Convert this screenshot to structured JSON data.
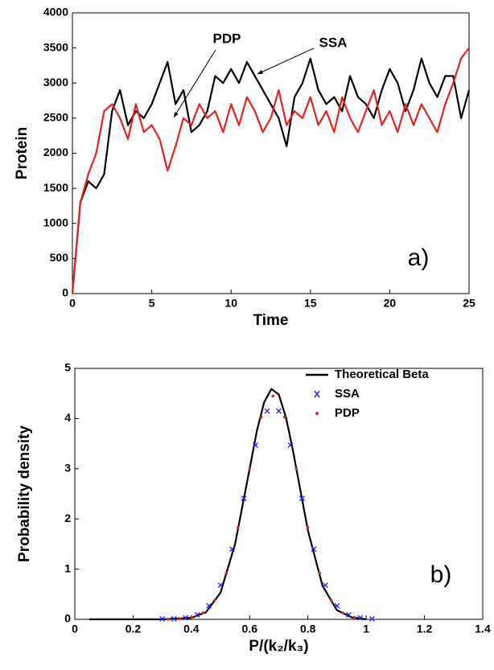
{
  "chart_data": [
    {
      "type": "line",
      "x": [
        0,
        0.5,
        1,
        1.5,
        2,
        2.5,
        3,
        3.5,
        4,
        4.5,
        5,
        5.5,
        6,
        6.5,
        7,
        7.5,
        8,
        8.5,
        9,
        9.5,
        10,
        10.5,
        11,
        11.5,
        12,
        12.5,
        13,
        13.5,
        14,
        14.5,
        15,
        15.5,
        16,
        16.5,
        17,
        17.5,
        18,
        18.5,
        19,
        19.5,
        20,
        20.5,
        21,
        21.5,
        22,
        22.5,
        23,
        23.5,
        24,
        24.5,
        25
      ],
      "series": [
        {
          "name": "SSA",
          "color": "#000000",
          "values": [
            0,
            1300,
            1600,
            1500,
            1700,
            2600,
            2900,
            2400,
            2600,
            2500,
            2700,
            3000,
            3300,
            2700,
            2900,
            2300,
            2400,
            2600,
            3100,
            3000,
            3200,
            3000,
            3300,
            3100,
            2900,
            2700,
            2500,
            2100,
            2800,
            3000,
            3350,
            2900,
            2700,
            2800,
            2600,
            3100,
            2800,
            2700,
            2500,
            2900,
            3200,
            3000,
            2600,
            2900,
            3350,
            3000,
            2800,
            3100,
            3100,
            2500,
            2900
          ]
        },
        {
          "name": "PDP",
          "color": "#e8211f",
          "values": [
            0,
            1300,
            1700,
            2000,
            2600,
            2700,
            2500,
            2200,
            2700,
            2300,
            2400,
            2200,
            1750,
            2100,
            2500,
            2400,
            2700,
            2500,
            2600,
            2300,
            2700,
            2400,
            2800,
            2600,
            2300,
            2500,
            2900,
            2400,
            2600,
            2500,
            2800,
            2400,
            2600,
            2300,
            2800,
            2500,
            2300,
            2600,
            2900,
            2400,
            2600,
            2300,
            2700,
            2400,
            2700,
            2500,
            2300,
            2700,
            3000,
            3350,
            3500
          ]
        }
      ],
      "xlim": [
        0,
        25
      ],
      "xticks": [
        0,
        5,
        10,
        15,
        20,
        25
      ],
      "ylim": [
        0,
        4000
      ],
      "yticks": [
        0,
        500,
        1000,
        1500,
        2000,
        2500,
        3000,
        3500,
        4000
      ],
      "xlabel": "Time",
      "ylabel": "Protein",
      "annotation": "a)",
      "legend": false
    },
    {
      "type": "line",
      "series": [
        {
          "name": "Theoretical Beta",
          "color": "#000000",
          "style": "line",
          "x": [
            0.05,
            0.3,
            0.4,
            0.45,
            0.5,
            0.55,
            0.6,
            0.625,
            0.65,
            0.675,
            0.7,
            0.725,
            0.75,
            0.8,
            0.85,
            0.9,
            0.95,
            1.0
          ],
          "values": [
            0,
            0,
            0.03,
            0.14,
            0.53,
            1.5,
            3.0,
            3.76,
            4.33,
            4.59,
            4.48,
            4.02,
            3.32,
            1.77,
            0.67,
            0.18,
            0.04,
            0
          ]
        },
        {
          "name": "SSA",
          "color": "#1f1fff",
          "style": "x",
          "x": [
            0.3,
            0.34,
            0.38,
            0.42,
            0.46,
            0.5,
            0.54,
            0.58,
            0.62,
            0.66,
            0.7,
            0.74,
            0.78,
            0.82,
            0.86,
            0.9,
            0.94,
            0.98,
            1.02
          ],
          "values": [
            0.01,
            0.01,
            0.03,
            0.09,
            0.27,
            0.68,
            1.4,
            2.41,
            3.47,
            4.15,
            4.15,
            3.47,
            2.41,
            1.4,
            0.68,
            0.27,
            0.09,
            0.03,
            0.01
          ]
        },
        {
          "name": "PDP",
          "color": "#e8211f",
          "style": "dot",
          "x": [
            0.32,
            0.36,
            0.4,
            0.44,
            0.48,
            0.52,
            0.56,
            0.6,
            0.64,
            0.68,
            0.72,
            0.76,
            0.8,
            0.84,
            0.88,
            0.92,
            0.96
          ],
          "values": [
            0,
            0.01,
            0.04,
            0.13,
            0.38,
            0.92,
            1.83,
            3.0,
            4.03,
            4.45,
            4.03,
            3.0,
            1.83,
            0.92,
            0.38,
            0.13,
            0.04
          ]
        }
      ],
      "xlim": [
        0,
        1.4
      ],
      "xticks": [
        0,
        0.2,
        0.4,
        0.6,
        0.8,
        1,
        1.2,
        1.4
      ],
      "ylim": [
        0,
        5
      ],
      "yticks": [
        0,
        1,
        2,
        3,
        4,
        5
      ],
      "xlabel": "P/(k₂/k₃)",
      "ylabel": "Probability density",
      "annotation": "b)",
      "legend": "upper right"
    }
  ]
}
